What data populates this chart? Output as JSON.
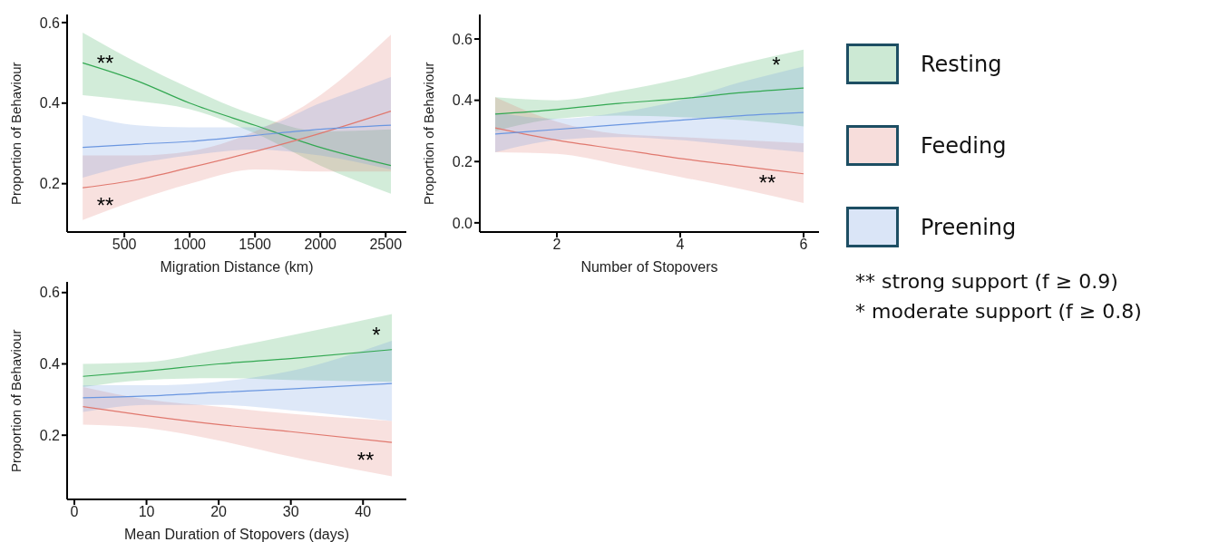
{
  "chart_data": [
    {
      "type": "line",
      "xlabel": "Migration Distance (km)",
      "ylabel": "Proportion of Behaviour",
      "x": [
        181,
        600,
        1000,
        1500,
        2000,
        2540
      ],
      "xlim": [
        62,
        2658
      ],
      "xticks": [
        500,
        1000,
        1500,
        2000,
        2500
      ],
      "ylim": [
        0.08,
        0.62
      ],
      "yticks": [
        0.2,
        0.4,
        0.6
      ],
      "grid": false,
      "legend": false,
      "marker": "none",
      "line_style": "solid",
      "series": [
        {
          "color": "#33a852",
          "values": [
            0.5,
            0.455,
            0.4,
            0.345,
            0.29,
            0.245
          ],
          "lower": [
            0.42,
            0.405,
            0.385,
            0.325,
            0.245,
            0.175
          ],
          "upper": [
            0.575,
            0.5,
            0.437,
            0.37,
            0.33,
            0.335
          ]
        },
        {
          "color": "#e0786e",
          "values": [
            0.19,
            0.21,
            0.24,
            0.28,
            0.325,
            0.38
          ],
          "lower": [
            0.11,
            0.16,
            0.2,
            0.235,
            0.23,
            0.23
          ],
          "upper": [
            0.27,
            0.27,
            0.28,
            0.33,
            0.42,
            0.57
          ]
        },
        {
          "color": "#6a96e0",
          "values": [
            0.29,
            0.298,
            0.305,
            0.32,
            0.335,
            0.345
          ],
          "lower": [
            0.215,
            0.25,
            0.27,
            0.285,
            0.27,
            0.235
          ],
          "upper": [
            0.37,
            0.345,
            0.34,
            0.34,
            0.4,
            0.465
          ]
        }
      ],
      "annotations": [
        "**",
        "**"
      ]
    },
    {
      "type": "line",
      "xlabel": "Number of Stopovers",
      "ylabel": "Proportion of Behaviour",
      "x": [
        1,
        2,
        3,
        4,
        5,
        6
      ],
      "xlim": [
        0.75,
        6.25
      ],
      "xticks": [
        2,
        4,
        6
      ],
      "ylim": [
        -0.03,
        0.68
      ],
      "yticks": [
        {
          "value": 0,
          "label": "0.0"
        },
        0.2,
        0.4,
        0.6
      ],
      "grid": false,
      "legend": "right",
      "marker": "none",
      "line_style": "solid",
      "series": [
        {
          "name": "Resting",
          "color": "#33a852",
          "values": [
            0.355,
            0.37,
            0.39,
            0.405,
            0.425,
            0.44
          ],
          "lower": [
            0.3,
            0.34,
            0.35,
            0.345,
            0.335,
            0.315
          ],
          "upper": [
            0.41,
            0.4,
            0.43,
            0.47,
            0.52,
            0.565
          ]
        },
        {
          "name": "Feeding",
          "color": "#e0786e",
          "values": [
            0.31,
            0.27,
            0.24,
            0.21,
            0.185,
            0.16
          ],
          "lower": [
            0.23,
            0.225,
            0.19,
            0.15,
            0.11,
            0.065
          ],
          "upper": [
            0.41,
            0.33,
            0.29,
            0.28,
            0.27,
            0.26
          ]
        },
        {
          "name": "Preening",
          "color": "#6a96e0",
          "values": [
            0.29,
            0.305,
            0.32,
            0.335,
            0.35,
            0.36
          ],
          "lower": [
            0.23,
            0.27,
            0.28,
            0.27,
            0.25,
            0.23
          ],
          "upper": [
            0.36,
            0.34,
            0.36,
            0.4,
            0.46,
            0.51
          ]
        }
      ],
      "annotations": [
        "*",
        "**",
        "** strong support (f ≥ 0.9)",
        "* moderate support (f ≥ 0.8)"
      ]
    },
    {
      "type": "line",
      "xlabel": "Mean Duration of Stopovers (days)",
      "ylabel": "Proportion of Behaviour",
      "x": [
        1.2,
        10,
        20,
        30,
        44
      ],
      "xlim": [
        -1,
        46
      ],
      "xticks": [
        0,
        10,
        20,
        30,
        40
      ],
      "ylim": [
        0.02,
        0.63
      ],
      "yticks": [
        0.2,
        0.4,
        0.6
      ],
      "grid": false,
      "legend": false,
      "marker": "none",
      "line_style": "solid",
      "series": [
        {
          "color": "#33a852",
          "values": [
            0.365,
            0.38,
            0.4,
            0.415,
            0.44
          ],
          "lower": [
            0.335,
            0.355,
            0.36,
            0.355,
            0.35
          ],
          "upper": [
            0.4,
            0.405,
            0.44,
            0.48,
            0.54
          ]
        },
        {
          "color": "#e0786e",
          "values": [
            0.28,
            0.255,
            0.23,
            0.21,
            0.18
          ],
          "lower": [
            0.23,
            0.22,
            0.185,
            0.14,
            0.085
          ],
          "upper": [
            0.335,
            0.3,
            0.28,
            0.26,
            0.24
          ]
        },
        {
          "color": "#6a96e0",
          "values": [
            0.305,
            0.31,
            0.32,
            0.33,
            0.345
          ],
          "lower": [
            0.265,
            0.285,
            0.285,
            0.27,
            0.24
          ],
          "upper": [
            0.34,
            0.34,
            0.35,
            0.38,
            0.465
          ]
        }
      ],
      "annotations": [
        "*",
        "**"
      ]
    }
  ]
}
